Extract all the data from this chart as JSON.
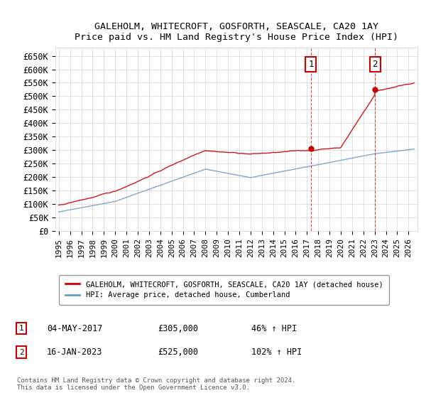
{
  "title": "GALEHOLM, WHITECROFT, GOSFORTH, SEASCALE, CA20 1AY",
  "subtitle": "Price paid vs. HM Land Registry's House Price Index (HPI)",
  "ylabel_ticks": [
    "£0",
    "£50K",
    "£100K",
    "£150K",
    "£200K",
    "£250K",
    "£300K",
    "£350K",
    "£400K",
    "£450K",
    "£500K",
    "£550K",
    "£600K",
    "£650K"
  ],
  "ytick_values": [
    0,
    50000,
    100000,
    150000,
    200000,
    250000,
    300000,
    350000,
    400000,
    450000,
    500000,
    550000,
    600000,
    650000
  ],
  "ylim": [
    0,
    680000
  ],
  "xlim_start": 1994.7,
  "xlim_end": 2026.8,
  "price_color": "#cc0000",
  "hpi_color": "#6699cc",
  "marker1_date": 2017.35,
  "marker1_value": 305000,
  "marker2_date": 2023.04,
  "marker2_value": 525000,
  "vline1_x": 2017.35,
  "vline2_x": 2023.04,
  "legend_label1": "GALEHOLM, WHITECROFT, GOSFORTH, SEASCALE, CA20 1AY (detached house)",
  "legend_label2": "HPI: Average price, detached house, Cumberland",
  "annotation1_num": "1",
  "annotation1_date": "04-MAY-2017",
  "annotation1_price": "£305,000",
  "annotation1_pct": "46% ↑ HPI",
  "annotation2_num": "2",
  "annotation2_date": "16-JAN-2023",
  "annotation2_price": "£525,000",
  "annotation2_pct": "102% ↑ HPI",
  "footnote": "Contains HM Land Registry data © Crown copyright and database right 2024.\nThis data is licensed under the Open Government Licence v3.0.",
  "background_color": "#ffffff",
  "grid_color": "#cccccc"
}
